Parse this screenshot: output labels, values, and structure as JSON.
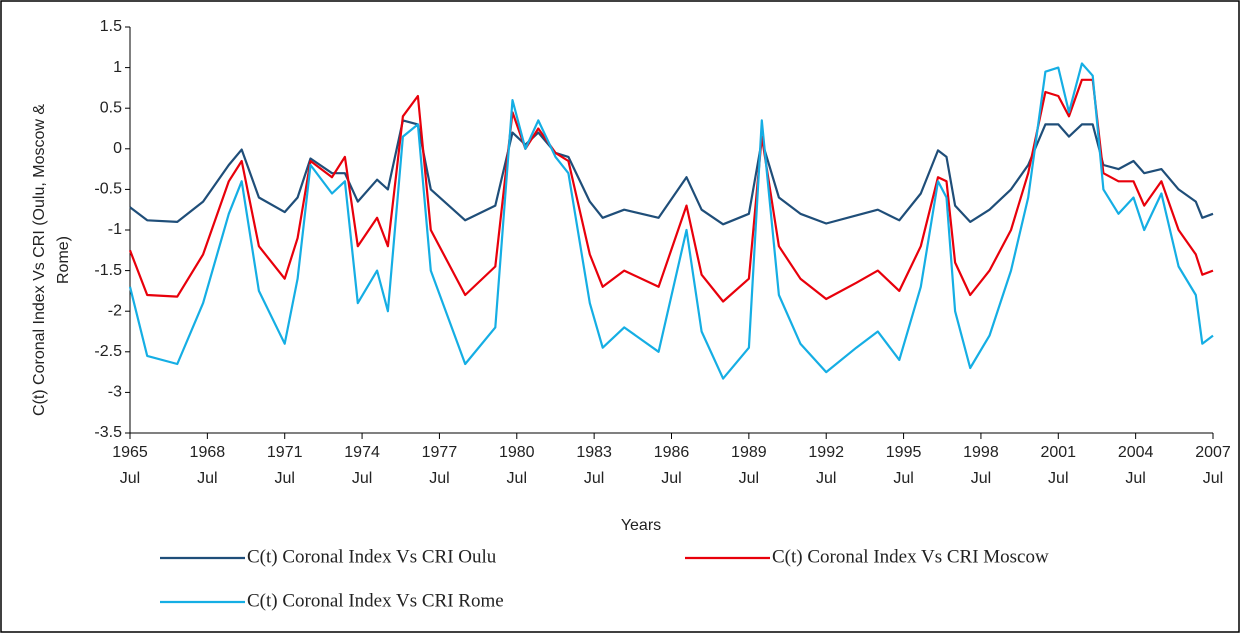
{
  "chart_data": {
    "type": "line",
    "x_label": "Years",
    "y_label": "C(t) Coronal Index Vs CRI (Oulu, Moscow & Rome)",
    "x": [
      "1965-07",
      "1966-03",
      "1967-05",
      "1968-05",
      "1969-05",
      "1969-11",
      "1970-07",
      "1971-07",
      "1972-01",
      "1972-07",
      "1973-05",
      "1973-11",
      "1974-05",
      "1975-02",
      "1975-07",
      "1976-02",
      "1976-09",
      "1977-03",
      "1978-07",
      "1979-09",
      "1980-05",
      "1980-11",
      "1981-05",
      "1982-01",
      "1982-07",
      "1983-05",
      "1983-11",
      "1984-09",
      "1986-01",
      "1987-02",
      "1987-09",
      "1988-07",
      "1989-07",
      "1990-01",
      "1990-09",
      "1991-07",
      "1992-07",
      "1993-09",
      "1994-07",
      "1995-05",
      "1996-03",
      "1996-11",
      "1997-03",
      "1997-07",
      "1998-02",
      "1998-11",
      "1999-09",
      "2000-05",
      "2001-01",
      "2001-07",
      "2001-12",
      "2002-06",
      "2002-11",
      "2003-04",
      "2003-11",
      "2004-06",
      "2004-11",
      "2005-07",
      "2006-03",
      "2006-11",
      "2007-02",
      "2007-07"
    ],
    "series": [
      {
        "name": "C(t) Coronal Index Vs CRI Oulu",
        "color": "#1f4e79",
        "values": [
          -0.72,
          -0.88,
          -0.9,
          -0.65,
          -0.2,
          -0.01,
          -0.6,
          -0.78,
          -0.6,
          -0.12,
          -0.3,
          -0.3,
          -0.65,
          -0.38,
          -0.5,
          0.35,
          0.3,
          -0.5,
          -0.88,
          -0.7,
          0.2,
          0.05,
          0.2,
          -0.05,
          -0.1,
          -0.65,
          -0.85,
          -0.75,
          -0.85,
          -0.35,
          -0.75,
          -0.93,
          -0.8,
          0.1,
          -0.6,
          -0.8,
          -0.92,
          -0.82,
          -0.75,
          -0.88,
          -0.55,
          -0.02,
          -0.1,
          -0.7,
          -0.9,
          -0.75,
          -0.5,
          -0.2,
          0.3,
          0.3,
          0.15,
          0.3,
          0.3,
          -0.2,
          -0.25,
          -0.15,
          -0.3,
          -0.25,
          -0.5,
          -0.65,
          -0.85,
          -0.8
        ]
      },
      {
        "name": "C(t) Coronal Index Vs CRI Moscow",
        "color": "#e8000b",
        "values": [
          -1.25,
          -1.8,
          -1.82,
          -1.3,
          -0.4,
          -0.15,
          -1.2,
          -1.6,
          -1.1,
          -0.15,
          -0.35,
          -0.1,
          -1.2,
          -0.85,
          -1.2,
          0.4,
          0.65,
          -1.0,
          -1.8,
          -1.45,
          0.45,
          0.0,
          0.25,
          -0.05,
          -0.15,
          -1.3,
          -1.7,
          -1.5,
          -1.7,
          -0.7,
          -1.55,
          -1.88,
          -1.6,
          0.15,
          -1.2,
          -1.6,
          -1.85,
          -1.65,
          -1.5,
          -1.75,
          -1.2,
          -0.35,
          -0.4,
          -1.4,
          -1.8,
          -1.5,
          -1.0,
          -0.3,
          0.7,
          0.65,
          0.4,
          0.85,
          0.85,
          -0.3,
          -0.4,
          -0.4,
          -0.7,
          -0.4,
          -1.0,
          -1.3,
          -1.55,
          -1.5
        ]
      },
      {
        "name": "C(t) Coronal Index Vs CRI Rome",
        "color": "#15aee4",
        "values": [
          -1.7,
          -2.55,
          -2.65,
          -1.9,
          -0.8,
          -0.4,
          -1.75,
          -2.4,
          -1.6,
          -0.2,
          -0.55,
          -0.4,
          -1.9,
          -1.5,
          -2.0,
          0.15,
          0.3,
          -1.5,
          -2.65,
          -2.2,
          0.6,
          0.0,
          0.35,
          -0.1,
          -0.3,
          -1.9,
          -2.45,
          -2.2,
          -2.5,
          -1.0,
          -2.25,
          -2.83,
          -2.45,
          0.35,
          -1.8,
          -2.4,
          -2.75,
          -2.45,
          -2.25,
          -2.6,
          -1.7,
          -0.4,
          -0.6,
          -2.0,
          -2.7,
          -2.3,
          -1.5,
          -0.6,
          0.95,
          1.0,
          0.45,
          1.05,
          0.9,
          -0.5,
          -0.8,
          -0.6,
          -1.0,
          -0.55,
          -1.45,
          -1.8,
          -2.4,
          -2.3
        ]
      }
    ],
    "xlim": [
      "1965-07",
      "2007-07"
    ],
    "xticks": [
      {
        "value": "1965-07",
        "label": "1965 Jul"
      },
      {
        "value": "1968-07",
        "label": "1968 Jul"
      },
      {
        "value": "1971-07",
        "label": "1971 Jul"
      },
      {
        "value": "1974-07",
        "label": "1974 Jul"
      },
      {
        "value": "1977-07",
        "label": "1977 Jul"
      },
      {
        "value": "1980-07",
        "label": "1980 Jul"
      },
      {
        "value": "1983-07",
        "label": "1983 Jul"
      },
      {
        "value": "1986-07",
        "label": "1986 Jul"
      },
      {
        "value": "1989-07",
        "label": "1989 Jul"
      },
      {
        "value": "1992-07",
        "label": "1992 Jul"
      },
      {
        "value": "1995-07",
        "label": "1995 Jul"
      },
      {
        "value": "1998-07",
        "label": "1998 Jul"
      },
      {
        "value": "2001-07",
        "label": "2001 Jul"
      },
      {
        "value": "2004-07",
        "label": "2004 Jul"
      },
      {
        "value": "2007-07",
        "label": "2007 Jul"
      }
    ],
    "ylim": [
      -3.5,
      1.5
    ],
    "yticks": [
      1.5,
      1,
      0.5,
      0,
      -0.5,
      -1,
      -1.5,
      -2,
      -2.5,
      -3,
      -3.5
    ],
    "grid": false
  }
}
